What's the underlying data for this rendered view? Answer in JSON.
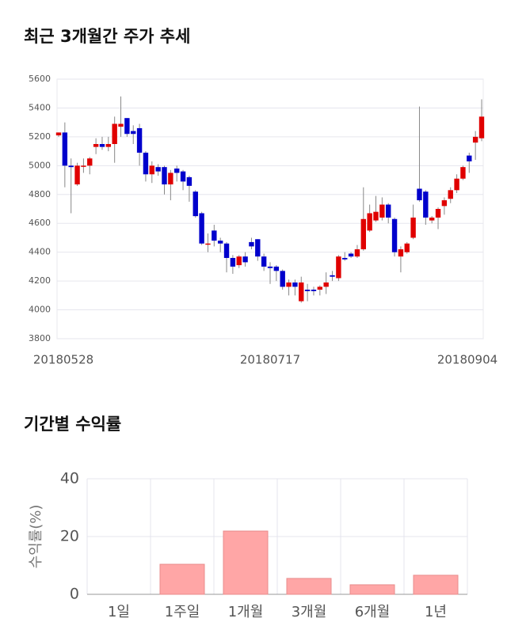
{
  "chart_data": [
    {
      "type": "candlestick",
      "title": "최근 3개월간 주가 추세",
      "categories": [
        "20180528",
        null,
        null,
        null,
        null,
        null,
        null,
        null,
        null,
        null,
        null,
        null,
        null,
        null,
        null,
        null,
        null,
        null,
        null,
        null,
        null,
        null,
        null,
        null,
        null,
        null,
        null,
        null,
        null,
        null,
        null,
        null,
        null,
        null,
        "20180717",
        null,
        null,
        null,
        null,
        null,
        null,
        null,
        null,
        null,
        null,
        null,
        null,
        null,
        null,
        null,
        null,
        null,
        null,
        null,
        null,
        null,
        null,
        null,
        null,
        null,
        null,
        null,
        null,
        null,
        null,
        null,
        null,
        null,
        "20180904"
      ],
      "open": [
        5210,
        5230,
        5000,
        4870,
        5000,
        5000,
        5130,
        5150,
        5130,
        5150,
        5270,
        5330,
        5240,
        5260,
        5090,
        4940,
        4990,
        4990,
        4870,
        4980,
        4960,
        4920,
        4820,
        4670,
        4460,
        4550,
        4480,
        4460,
        4360,
        4310,
        4370,
        4470,
        4490,
        4370,
        4300,
        4300,
        4270,
        4160,
        4190,
        4060,
        4140,
        4140,
        4140,
        4160,
        4240,
        4220,
        4360,
        4390,
        4370,
        4420,
        4550,
        4620,
        4640,
        4730,
        4630,
        4370,
        4400,
        4500,
        4840,
        4820,
        4620,
        4640,
        4720,
        4770,
        4830,
        4910,
        5070,
        5160,
        5190
      ],
      "high": [
        5230,
        5300,
        5050,
        5020,
        5050,
        5060,
        5190,
        5200,
        5200,
        5340,
        5480,
        5330,
        5280,
        5290,
        5100,
        5030,
        5010,
        5000,
        4970,
        5000,
        4970,
        4930,
        4830,
        4680,
        4530,
        4590,
        4500,
        4470,
        4380,
        4380,
        4400,
        4500,
        4490,
        4390,
        4330,
        4310,
        4280,
        4210,
        4210,
        4230,
        4180,
        4160,
        4170,
        4260,
        4270,
        4380,
        4400,
        4400,
        4450,
        4850,
        4730,
        4790,
        4780,
        4740,
        4640,
        4440,
        4470,
        4730,
        5410,
        4830,
        4650,
        4710,
        4780,
        4850,
        4940,
        5000,
        5090,
        5240,
        5460
      ],
      "low": [
        5200,
        4850,
        4670,
        4860,
        4950,
        4940,
        5080,
        5110,
        5100,
        5020,
        5200,
        5200,
        5150,
        5000,
        4890,
        4880,
        4930,
        4800,
        4760,
        4890,
        4830,
        4750,
        4640,
        4450,
        4400,
        4440,
        4400,
        4260,
        4250,
        4290,
        4300,
        4420,
        4340,
        4270,
        4180,
        4200,
        4140,
        4100,
        4100,
        4050,
        4060,
        4100,
        4100,
        4110,
        4200,
        4200,
        4340,
        4360,
        4360,
        4410,
        4540,
        4610,
        4620,
        4600,
        4370,
        4260,
        4390,
        4490,
        4750,
        4590,
        4600,
        4560,
        4660,
        4740,
        4810,
        4900,
        4950,
        5040,
        5170
      ],
      "close": [
        5230,
        5000,
        4990,
        5000,
        5000,
        5050,
        5150,
        5130,
        5150,
        5290,
        5290,
        5220,
        5220,
        5090,
        4940,
        5000,
        4960,
        4870,
        4950,
        4950,
        4890,
        4860,
        4650,
        4460,
        4460,
        4480,
        4460,
        4360,
        4300,
        4370,
        4330,
        4440,
        4370,
        4300,
        4290,
        4270,
        4160,
        4190,
        4160,
        4190,
        4130,
        4130,
        4160,
        4190,
        4230,
        4370,
        4350,
        4370,
        4420,
        4630,
        4670,
        4680,
        4730,
        4640,
        4400,
        4420,
        4460,
        4640,
        4760,
        4640,
        4640,
        4700,
        4760,
        4830,
        4910,
        4990,
        5030,
        5200,
        5340
      ],
      "up_color": "#e00000",
      "down_color": "#0000cc",
      "ylim": [
        3800,
        5600
      ],
      "yticks": [
        3800,
        4000,
        4200,
        4400,
        4600,
        4800,
        5000,
        5200,
        5400,
        5600
      ],
      "grid": true
    },
    {
      "type": "bar",
      "title": "기간별 수익률",
      "ylabel": "수익률(%)",
      "categories": [
        "1일",
        "1주일",
        "1개월",
        "3개월",
        "6개월",
        "1년"
      ],
      "values": [
        0,
        10.4,
        21.9,
        5.5,
        3.3,
        6.6
      ],
      "color": "#ffa6a6",
      "ylim": [
        0,
        40
      ],
      "yticks": [
        0,
        20,
        40
      ],
      "grid": true
    }
  ]
}
